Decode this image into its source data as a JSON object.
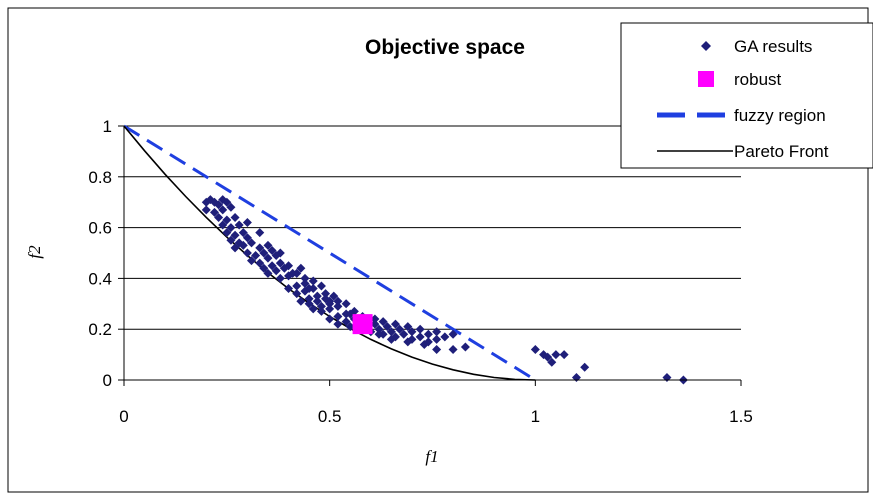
{
  "chart_data": {
    "type": "scatter",
    "title": "Objective space",
    "xlabel": "f1",
    "ylabel": "f2",
    "xlim": [
      0,
      1.5
    ],
    "ylim": [
      0,
      1
    ],
    "x_ticks": [
      "0",
      "0.5",
      "1",
      "1.5"
    ],
    "y_ticks": [
      "0",
      "0.2",
      "0.4",
      "0.6",
      "0.8",
      "1"
    ],
    "grid": "horizontal",
    "legend_position": "top-right",
    "colors": {
      "ga": "#1f1f7a",
      "robust": "#ff00ff",
      "fuzzy": "#1f3fe0",
      "pareto": "#000000"
    },
    "legend": [
      {
        "label": "GA results"
      },
      {
        "label": "robust"
      },
      {
        "label": "fuzzy region"
      },
      {
        "label": "Pareto Front"
      }
    ],
    "series": [
      {
        "name": "GA results",
        "kind": "scatter",
        "x": [
          0.2,
          0.21,
          0.22,
          0.23,
          0.24,
          0.25,
          0.2,
          0.22,
          0.24,
          0.26,
          0.23,
          0.25,
          0.27,
          0.24,
          0.26,
          0.28,
          0.25,
          0.27,
          0.29,
          0.26,
          0.28,
          0.3,
          0.27,
          0.29,
          0.31,
          0.33,
          0.35,
          0.3,
          0.32,
          0.34,
          0.36,
          0.38,
          0.31,
          0.33,
          0.35,
          0.37,
          0.34,
          0.36,
          0.38,
          0.4,
          0.35,
          0.37,
          0.39,
          0.41,
          0.38,
          0.4,
          0.42,
          0.44,
          0.4,
          0.42,
          0.44,
          0.46,
          0.42,
          0.44,
          0.46,
          0.48,
          0.43,
          0.45,
          0.47,
          0.49,
          0.45,
          0.47,
          0.49,
          0.51,
          0.46,
          0.48,
          0.5,
          0.52,
          0.48,
          0.5,
          0.52,
          0.54,
          0.5,
          0.52,
          0.54,
          0.56,
          0.52,
          0.54,
          0.56,
          0.58,
          0.55,
          0.57,
          0.59,
          0.61,
          0.57,
          0.59,
          0.61,
          0.63,
          0.6,
          0.62,
          0.64,
          0.66,
          0.63,
          0.65,
          0.67,
          0.69,
          0.66,
          0.68,
          0.7,
          0.72,
          0.7,
          0.72,
          0.74,
          0.76,
          0.74,
          0.76,
          0.78,
          0.8,
          0.8,
          0.83,
          0.76,
          0.73,
          0.65,
          0.62,
          0.69,
          0.55,
          0.43,
          0.33,
          0.3,
          0.45,
          0.5,
          1.0,
          1.02,
          1.03,
          1.05,
          1.07,
          1.04,
          1.1,
          1.12,
          1.32,
          1.36
        ],
        "y": [
          0.7,
          0.71,
          0.7,
          0.69,
          0.71,
          0.7,
          0.67,
          0.66,
          0.67,
          0.68,
          0.64,
          0.63,
          0.64,
          0.61,
          0.6,
          0.61,
          0.58,
          0.57,
          0.58,
          0.55,
          0.54,
          0.56,
          0.52,
          0.53,
          0.54,
          0.52,
          0.53,
          0.5,
          0.49,
          0.5,
          0.51,
          0.5,
          0.47,
          0.46,
          0.48,
          0.49,
          0.44,
          0.45,
          0.46,
          0.45,
          0.42,
          0.43,
          0.44,
          0.42,
          0.4,
          0.41,
          0.42,
          0.4,
          0.36,
          0.37,
          0.38,
          0.39,
          0.34,
          0.35,
          0.36,
          0.37,
          0.31,
          0.32,
          0.33,
          0.34,
          0.3,
          0.31,
          0.32,
          0.33,
          0.28,
          0.29,
          0.3,
          0.31,
          0.27,
          0.28,
          0.29,
          0.3,
          0.24,
          0.25,
          0.26,
          0.27,
          0.22,
          0.23,
          0.24,
          0.25,
          0.21,
          0.22,
          0.23,
          0.24,
          0.2,
          0.21,
          0.22,
          0.23,
          0.19,
          0.2,
          0.21,
          0.22,
          0.18,
          0.19,
          0.2,
          0.21,
          0.17,
          0.18,
          0.19,
          0.2,
          0.16,
          0.17,
          0.18,
          0.19,
          0.15,
          0.16,
          0.17,
          0.18,
          0.12,
          0.13,
          0.12,
          0.14,
          0.16,
          0.18,
          0.15,
          0.26,
          0.44,
          0.58,
          0.62,
          0.36,
          0.31,
          0.12,
          0.1,
          0.09,
          0.1,
          0.1,
          0.07,
          0.01,
          0.05,
          0.01,
          0.0
        ]
      },
      {
        "name": "robust",
        "kind": "marker",
        "x": [
          0.58
        ],
        "y": [
          0.22
        ]
      },
      {
        "name": "fuzzy region",
        "kind": "line",
        "x": [
          0,
          1
        ],
        "y": [
          1,
          0
        ]
      },
      {
        "name": "Pareto Front",
        "kind": "curve",
        "x": [
          0,
          0.05,
          0.1,
          0.15,
          0.2,
          0.25,
          0.3,
          0.35,
          0.4,
          0.45,
          0.5,
          0.55,
          0.6,
          0.65,
          0.7,
          0.75,
          0.8,
          0.85,
          0.9,
          0.95,
          1.0
        ],
        "y": [
          1,
          0.9025,
          0.81,
          0.7225,
          0.64,
          0.5625,
          0.49,
          0.4225,
          0.36,
          0.3025,
          0.25,
          0.2025,
          0.16,
          0.1225,
          0.09,
          0.0625,
          0.04,
          0.0225,
          0.01,
          0.0025,
          0
        ]
      }
    ]
  }
}
